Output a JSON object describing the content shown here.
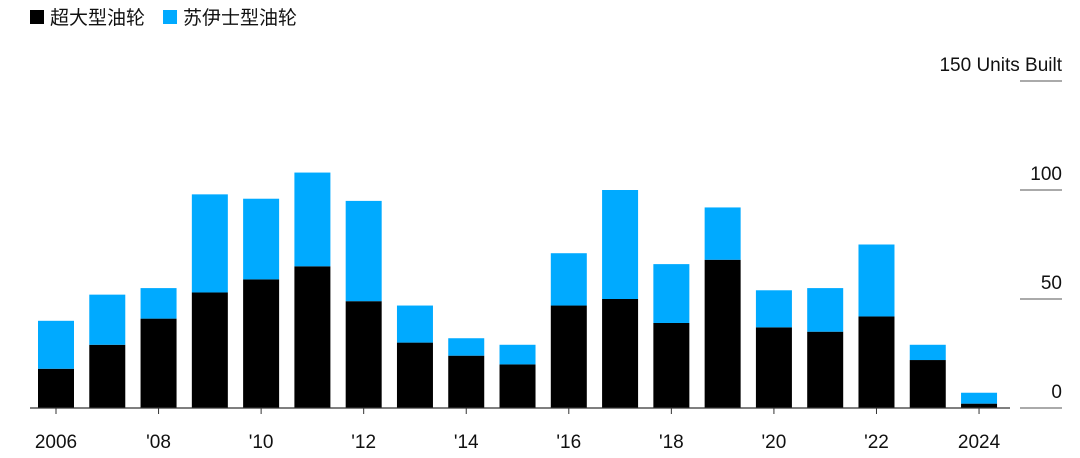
{
  "chart_data": {
    "type": "stacked_bar",
    "categories": [
      "2006",
      null,
      "'08",
      null,
      "'10",
      null,
      "'12",
      null,
      "'14",
      null,
      "'16",
      null,
      "'18",
      null,
      "'20",
      null,
      "'22",
      null,
      "2024"
    ],
    "series": [
      {
        "name": "超大型油轮",
        "color": "#000000",
        "values": [
          18,
          29,
          41,
          53,
          59,
          65,
          49,
          30,
          24,
          20,
          47,
          50,
          39,
          68,
          37,
          35,
          42,
          22,
          2
        ]
      },
      {
        "name": "苏伊士型油轮",
        "color": "#00aaff",
        "values": [
          22,
          23,
          14,
          45,
          37,
          43,
          46,
          17,
          8,
          9,
          24,
          50,
          27,
          24,
          17,
          20,
          33,
          7,
          5
        ]
      }
    ],
    "ylim": [
      0,
      150
    ],
    "yticks": [
      0,
      50,
      100,
      {
        "value": 150,
        "label": "150 Units Built"
      }
    ],
    "grid": true
  }
}
